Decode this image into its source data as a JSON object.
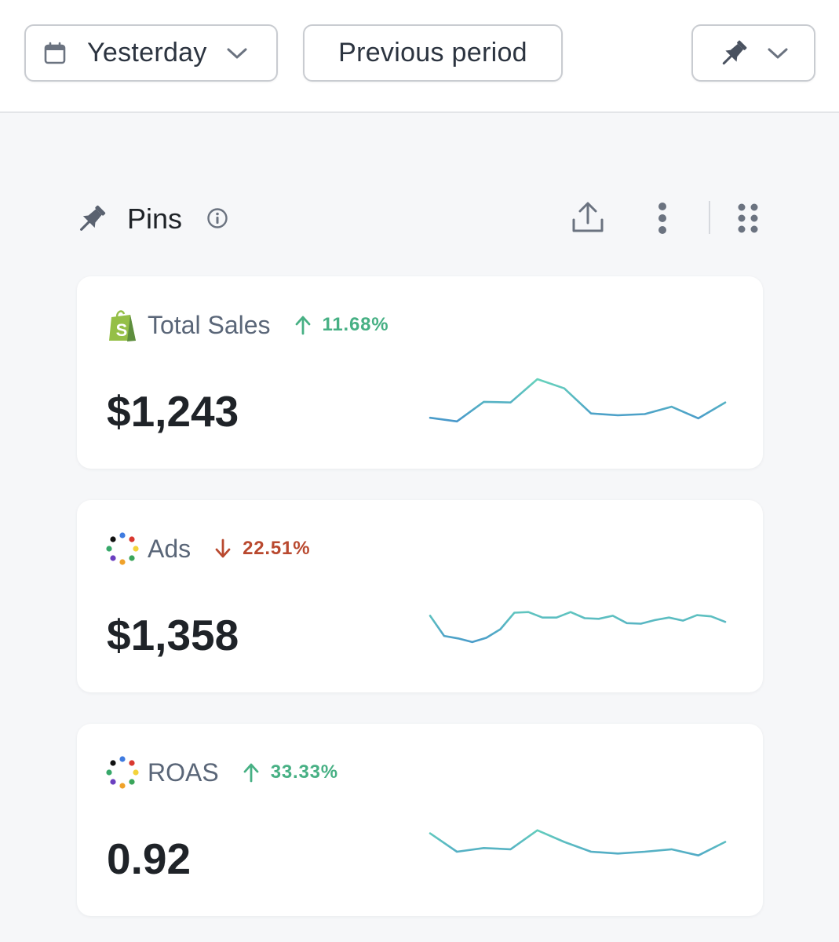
{
  "toolbar": {
    "date_range": {
      "label": "Yesterday",
      "icon": "calendar-icon"
    },
    "compare": {
      "label": "Previous period"
    },
    "pin_menu": {
      "icon": "pin-icon"
    }
  },
  "section": {
    "title": "Pins",
    "icons": [
      "pin-icon",
      "info-icon",
      "share-icon",
      "more-vertical-icon",
      "drag-grid-icon"
    ]
  },
  "cards": [
    {
      "source_icon": "shopify-icon",
      "name": "Total Sales",
      "trend": {
        "direction": "up",
        "percent": "11.68%"
      },
      "value": "$1,243",
      "sparkline": [
        28,
        22,
        54,
        53,
        91,
        76,
        35,
        32,
        34,
        46,
        27,
        53
      ]
    },
    {
      "source_icon": "ads-dots-icon",
      "name": "Ads",
      "trend": {
        "direction": "down",
        "percent": "22.51%"
      },
      "value": "$1,358",
      "sparkline": [
        70,
        37,
        33,
        27,
        34,
        48,
        75,
        76,
        67,
        67,
        76,
        66,
        65,
        70,
        58,
        57,
        63,
        67,
        62,
        71,
        69,
        60
      ]
    },
    {
      "source_icon": "ads-dots-icon",
      "name": "ROAS",
      "trend": {
        "direction": "up",
        "percent": "33.33%"
      },
      "value": "0.92",
      "sparkline": [
        80,
        50,
        56,
        54,
        85,
        66,
        50,
        47,
        50,
        54,
        44,
        66
      ]
    }
  ],
  "colors": {
    "up": "#47b084",
    "down": "#b9492f",
    "spark_low": "#3b7fd1",
    "spark_high": "#6ee0b8"
  }
}
